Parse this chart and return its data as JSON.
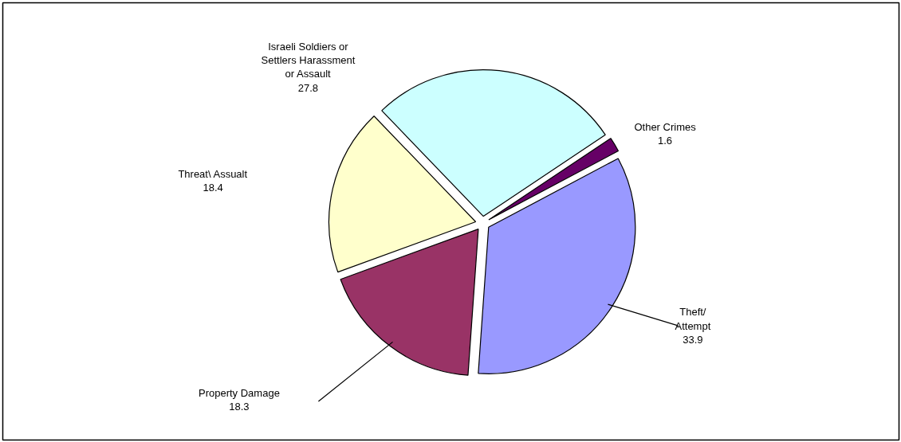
{
  "chart_data": {
    "type": "pie",
    "categories": [
      "Theft/ Attempt",
      "Property Damage",
      "Threat\\ Assualt",
      "Israeli Soldiers or Settlers Harassment or Assault",
      "Other Crimes"
    ],
    "values": [
      33.9,
      18.3,
      18.4,
      27.8,
      1.6
    ],
    "colors": [
      "#9999ff",
      "#993366",
      "#ffffcc",
      "#ccffff",
      "#660066"
    ],
    "data_labels": true
  }
}
